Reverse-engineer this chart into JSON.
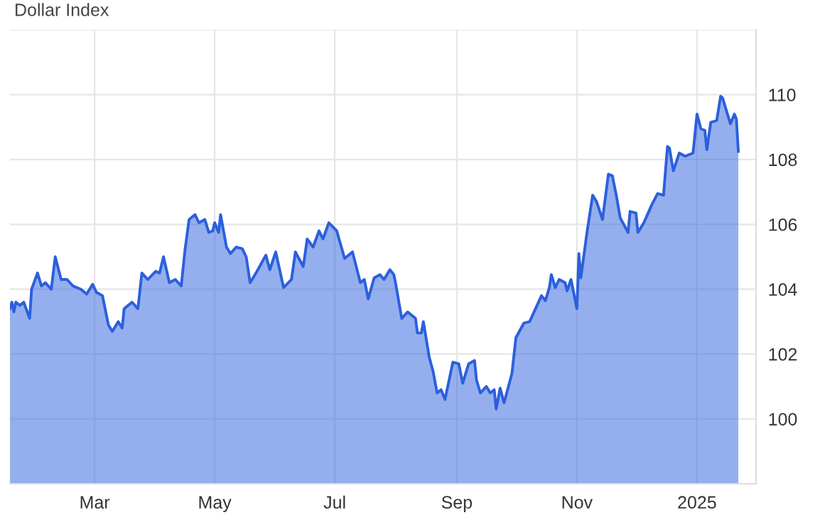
{
  "chart_data": {
    "type": "area",
    "title": "Dollar Index",
    "x": [
      "2024-01-18",
      "2024-01-19",
      "2024-01-20",
      "2024-01-21",
      "2024-01-23",
      "2024-01-25",
      "2024-01-28",
      "2024-01-29",
      "2024-02-01",
      "2024-02-03",
      "2024-02-05",
      "2024-02-08",
      "2024-02-10",
      "2024-02-13",
      "2024-02-16",
      "2024-02-19",
      "2024-02-23",
      "2024-02-26",
      "2024-02-29",
      "2024-03-02",
      "2024-03-05",
      "2024-03-08",
      "2024-03-10",
      "2024-03-13",
      "2024-03-15",
      "2024-03-16",
      "2024-03-20",
      "2024-03-23",
      "2024-03-25",
      "2024-03-28",
      "2024-04-01",
      "2024-04-03",
      "2024-04-05",
      "2024-04-08",
      "2024-04-11",
      "2024-04-14",
      "2024-04-16",
      "2024-04-18",
      "2024-04-21",
      "2024-04-23",
      "2024-04-26",
      "2024-04-28",
      "2024-04-30",
      "2024-05-01",
      "2024-05-03",
      "2024-05-04",
      "2024-05-07",
      "2024-05-09",
      "2024-05-12",
      "2024-05-15",
      "2024-05-17",
      "2024-05-19",
      "2024-05-22",
      "2024-05-27",
      "2024-05-29",
      "2024-06-01",
      "2024-06-05",
      "2024-06-09",
      "2024-06-11",
      "2024-06-15",
      "2024-06-17",
      "2024-06-20",
      "2024-06-23",
      "2024-06-25",
      "2024-06-28",
      "2024-07-02",
      "2024-07-06",
      "2024-07-10",
      "2024-07-14",
      "2024-07-16",
      "2024-07-18",
      "2024-07-21",
      "2024-07-24",
      "2024-07-26",
      "2024-07-29",
      "2024-07-31",
      "2024-08-01",
      "2024-08-04",
      "2024-08-07",
      "2024-08-11",
      "2024-08-12",
      "2024-08-14",
      "2024-08-15",
      "2024-08-18",
      "2024-08-20",
      "2024-08-22",
      "2024-08-24",
      "2024-08-26",
      "2024-08-30",
      "2024-09-02",
      "2024-09-04",
      "2024-09-07",
      "2024-09-10",
      "2024-09-11",
      "2024-09-13",
      "2024-09-16",
      "2024-09-18",
      "2024-09-20",
      "2024-09-21",
      "2024-09-23",
      "2024-09-25",
      "2024-09-29",
      "2024-10-01",
      "2024-10-05",
      "2024-10-08",
      "2024-10-11",
      "2024-10-14",
      "2024-10-16",
      "2024-10-18",
      "2024-10-19",
      "2024-10-21",
      "2024-10-23",
      "2024-10-26",
      "2024-10-27",
      "2024-10-29",
      "2024-11-01",
      "2024-11-02",
      "2024-11-03",
      "2024-11-06",
      "2024-11-09",
      "2024-11-11",
      "2024-11-14",
      "2024-11-17",
      "2024-11-19",
      "2024-11-21",
      "2024-11-23",
      "2024-11-27",
      "2024-11-28",
      "2024-12-01",
      "2024-12-02",
      "2024-12-05",
      "2024-12-09",
      "2024-12-12",
      "2024-12-15",
      "2024-12-17",
      "2024-12-18",
      "2024-12-20",
      "2024-12-23",
      "2024-12-26",
      "2024-12-28",
      "2024-12-30",
      "2025-01-01",
      "2025-01-03",
      "2025-01-05",
      "2025-01-06",
      "2025-01-08",
      "2025-01-11",
      "2025-01-13",
      "2025-01-14",
      "2025-01-18",
      "2025-01-20",
      "2025-01-21",
      "2025-01-22"
    ],
    "series": [
      {
        "color": "#2b5fde",
        "values": [
          103.4,
          103.6,
          103.3,
          103.6,
          103.5,
          103.6,
          103.1,
          104.0,
          104.5,
          104.1,
          104.2,
          104.0,
          105.0,
          104.3,
          104.3,
          104.1,
          104.0,
          103.85,
          104.15,
          103.9,
          103.8,
          102.9,
          102.7,
          103.0,
          102.8,
          103.4,
          103.6,
          103.4,
          104.5,
          104.3,
          104.55,
          104.5,
          105.0,
          104.2,
          104.3,
          104.1,
          105.25,
          106.15,
          106.3,
          106.05,
          106.15,
          105.75,
          105.8,
          106.05,
          105.75,
          106.3,
          105.3,
          105.1,
          105.3,
          105.25,
          105.0,
          104.2,
          104.5,
          105.05,
          104.6,
          105.15,
          104.05,
          104.3,
          105.15,
          104.7,
          105.55,
          105.3,
          105.8,
          105.55,
          106.05,
          105.8,
          104.95,
          105.15,
          104.2,
          104.3,
          103.7,
          104.35,
          104.45,
          104.3,
          104.6,
          104.45,
          104.15,
          103.1,
          103.3,
          103.1,
          102.65,
          102.65,
          103.0,
          101.9,
          101.45,
          100.8,
          100.9,
          100.6,
          101.75,
          101.7,
          101.1,
          101.7,
          101.8,
          101.2,
          100.8,
          101.0,
          100.8,
          100.9,
          100.3,
          100.95,
          100.5,
          101.4,
          102.5,
          102.95,
          103.0,
          103.4,
          103.8,
          103.65,
          104.05,
          104.45,
          104.05,
          104.3,
          104.2,
          103.95,
          104.3,
          103.4,
          105.1,
          104.35,
          105.7,
          106.9,
          106.7,
          106.15,
          107.55,
          107.5,
          106.9,
          106.2,
          105.75,
          106.4,
          106.35,
          105.75,
          106.05,
          106.6,
          106.95,
          106.9,
          108.4,
          108.35,
          107.65,
          108.2,
          108.1,
          108.15,
          108.2,
          109.4,
          108.95,
          108.9,
          108.3,
          109.15,
          109.2,
          109.95,
          109.9,
          109.1,
          109.4,
          109.25,
          108.25
        ]
      }
    ],
    "xlim": [
      "2024-01-18",
      "2025-01-31"
    ],
    "xticks": [
      {
        "value": "2024-03-01",
        "label": "Mar"
      },
      {
        "value": "2024-05-01",
        "label": "May"
      },
      {
        "value": "2024-07-01",
        "label": "Jul"
      },
      {
        "value": "2024-09-01",
        "label": "Sep"
      },
      {
        "value": "2024-11-01",
        "label": "Nov"
      },
      {
        "value": "2025-01-01",
        "label": "2025"
      }
    ],
    "ylim": [
      98,
      112
    ],
    "yticks": [
      100,
      102,
      104,
      106,
      108,
      110,
      {
        "value": 112,
        "label": null
      }
    ],
    "grid": true
  }
}
